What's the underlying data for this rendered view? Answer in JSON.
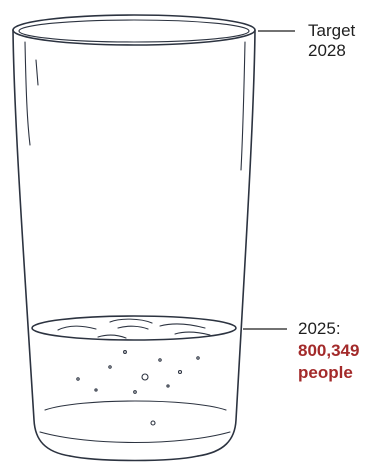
{
  "labels": {
    "target_line1": "Target",
    "target_line2": "2028",
    "current_line1": "2025:",
    "current_value": "800,349",
    "current_unit": "people"
  },
  "colors": {
    "sketch_stroke": "#2c3340",
    "label_text": "#1f1f1f",
    "highlight": "#a32a2a",
    "background": "#ffffff"
  }
}
